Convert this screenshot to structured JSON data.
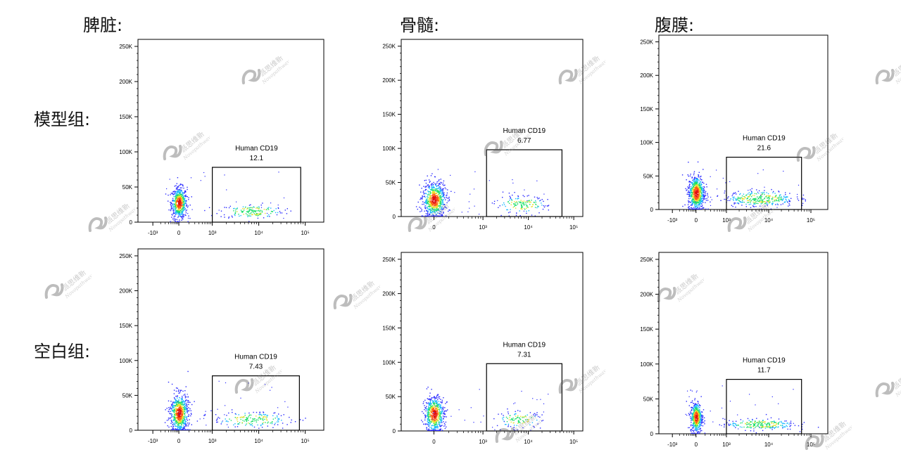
{
  "column_titles": [
    "脾脏:",
    "骨髓:",
    "腹膜:"
  ],
  "row_titles": [
    "模型组:",
    "空白组:"
  ],
  "watermark": {
    "line1": "派思维新",
    "line2": "Novopathway"
  },
  "colors": {
    "density": [
      "#2a2aff",
      "#19b9ff",
      "#1fe06a",
      "#e8e12a",
      "#ff5a14",
      "#e01010"
    ]
  },
  "chart_data": [
    {
      "type": "scatter",
      "tissue": "脾脏:",
      "group": "模型组:",
      "y_ticks": [
        "0",
        "50K",
        "100K",
        "150K",
        "200K",
        "250K"
      ],
      "y_tick_values": [
        0,
        50000,
        100000,
        150000,
        200000,
        250000
      ],
      "x_ticks": [
        "-10³",
        "0",
        "10³",
        "10⁴",
        "10⁵"
      ],
      "gate": {
        "name": "Human CD19",
        "value": "12.1",
        "x": [
          1000,
          80000
        ],
        "y": [
          0,
          78000
        ]
      },
      "clusters": [
        {
          "x": 0,
          "y": 28000,
          "sx": 0.06,
          "sy": 11000,
          "n": 600
        },
        {
          "x": 7000,
          "y": 16000,
          "sx": 0.25,
          "sy": 5000,
          "n": 160
        }
      ]
    },
    {
      "type": "scatter",
      "tissue": "骨髓:",
      "group": "模型组:",
      "y_ticks": [
        "0",
        "50K",
        "100K",
        "150K",
        "200K",
        "250K"
      ],
      "y_tick_values": [
        0,
        50000,
        100000,
        150000,
        200000,
        250000
      ],
      "x_ticks": [
        "0",
        "10³",
        "10⁴",
        "10⁵"
      ],
      "gate": {
        "name": "Human CD19",
        "value": "6.77",
        "x": [
          1200,
          55000
        ],
        "y": [
          0,
          98000
        ]
      },
      "clusters": [
        {
          "x": 0,
          "y": 25000,
          "sx": 0.09,
          "sy": 13000,
          "n": 700
        },
        {
          "x": 7000,
          "y": 18000,
          "sx": 0.2,
          "sy": 6500,
          "n": 150
        }
      ]
    },
    {
      "type": "scatter",
      "tissue": "腹膜:",
      "group": "模型组:",
      "y_ticks": [
        "0",
        "50K",
        "100K",
        "150K",
        "200K",
        "250K"
      ],
      "y_tick_values": [
        0,
        50000,
        100000,
        150000,
        200000,
        250000
      ],
      "x_ticks": [
        "-10³",
        "0",
        "10³",
        "10⁴",
        "10⁵"
      ],
      "gate": {
        "name": "Human CD19",
        "value": "21.6",
        "x": [
          1000,
          60000
        ],
        "y": [
          0,
          78000
        ]
      },
      "clusters": [
        {
          "x": 0,
          "y": 25000,
          "sx": 0.07,
          "sy": 13000,
          "n": 700
        },
        {
          "x": 6000,
          "y": 17000,
          "sx": 0.3,
          "sy": 6000,
          "n": 320
        }
      ]
    },
    {
      "type": "scatter",
      "tissue": "脾脏:",
      "group": "空白组:",
      "y_ticks": [
        "0",
        "50K",
        "100K",
        "150K",
        "200K",
        "250K"
      ],
      "y_tick_values": [
        0,
        50000,
        100000,
        150000,
        200000,
        250000
      ],
      "x_ticks": [
        "-10³",
        "0",
        "10³",
        "10⁴",
        "10⁵"
      ],
      "gate": {
        "name": "Human CD19",
        "value": "7.43",
        "x": [
          1000,
          75000
        ],
        "y": [
          0,
          78000
        ]
      },
      "clusters": [
        {
          "x": 0,
          "y": 25000,
          "sx": 0.07,
          "sy": 14000,
          "n": 700
        },
        {
          "x": 7000,
          "y": 16000,
          "sx": 0.3,
          "sy": 5500,
          "n": 180
        }
      ]
    },
    {
      "type": "scatter",
      "tissue": "骨髓:",
      "group": "空白组:",
      "y_ticks": [
        "0",
        "50K",
        "100K",
        "150K",
        "200K",
        "250K"
      ],
      "y_tick_values": [
        0,
        50000,
        100000,
        150000,
        200000,
        250000
      ],
      "x_ticks": [
        "0",
        "10³",
        "10⁴",
        "10⁵"
      ],
      "gate": {
        "name": "Human CD19",
        "value": "7.31",
        "x": [
          1200,
          55000
        ],
        "y": [
          0,
          98000
        ]
      },
      "clusters": [
        {
          "x": 0,
          "y": 25000,
          "sx": 0.08,
          "sy": 13000,
          "n": 600
        },
        {
          "x": 6000,
          "y": 17000,
          "sx": 0.18,
          "sy": 6000,
          "n": 110
        }
      ]
    },
    {
      "type": "scatter",
      "tissue": "腹膜:",
      "group": "空白组:",
      "y_ticks": [
        "0",
        "50K",
        "100K",
        "150K",
        "200K",
        "250K"
      ],
      "y_tick_values": [
        0,
        50000,
        100000,
        150000,
        200000,
        250000
      ],
      "x_ticks": [
        "-10³",
        "0",
        "10³",
        "10⁴",
        "10⁵"
      ],
      "gate": {
        "name": "Human CD19",
        "value": "11.7",
        "x": [
          1000,
          60000
        ],
        "y": [
          0,
          78000
        ]
      },
      "clusters": [
        {
          "x": 0,
          "y": 24000,
          "sx": 0.05,
          "sy": 11000,
          "n": 500
        },
        {
          "x": 6000,
          "y": 14000,
          "sx": 0.3,
          "sy": 4000,
          "n": 230
        }
      ]
    }
  ]
}
